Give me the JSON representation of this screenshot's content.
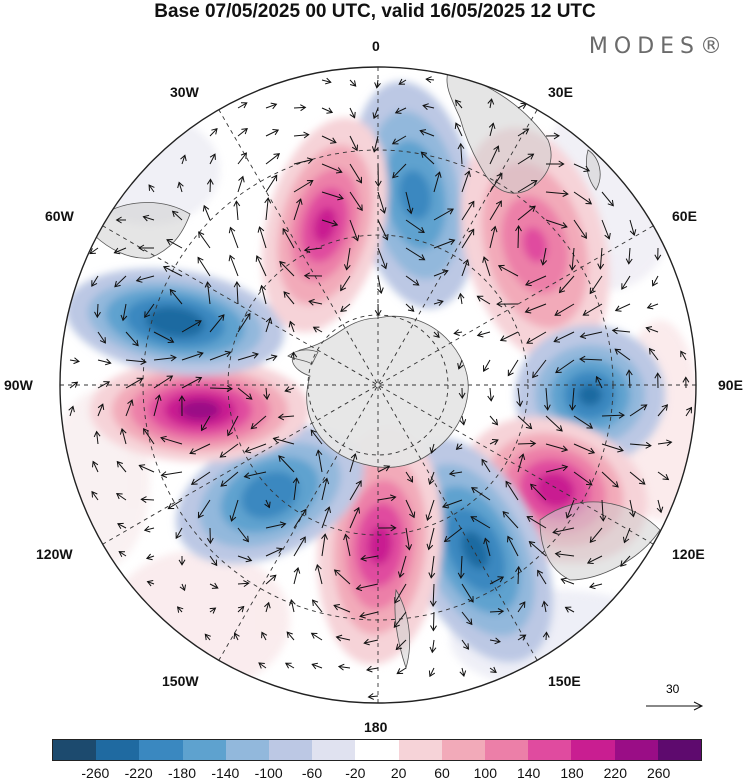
{
  "title": "Base 07/05/2025 00 UTC, valid 16/05/2025 12 UTC",
  "brand": "MODES®",
  "longitude_labels": {
    "l0": "0",
    "l30e": "30E",
    "l60e": "60E",
    "l90e": "90E",
    "l120e": "120E",
    "l150e": "150E",
    "l180": "180",
    "l150w": "150W",
    "l120w": "120W",
    "l90w": "90W",
    "l60w": "60W",
    "l30w": "30W"
  },
  "reference_vector": {
    "label": "30"
  },
  "colorbar": {
    "colors": [
      "#1c4a6e",
      "#1f6aa1",
      "#3a88c0",
      "#5ea2cf",
      "#92b8dc",
      "#bcc8e4",
      "#e0e2f0",
      "#ffffff",
      "#f6d3d8",
      "#f2aab9",
      "#ec7fa8",
      "#e04b9f",
      "#c91e91",
      "#9a0d86",
      "#5e0a6e"
    ],
    "ticks": [
      "-260",
      "-220",
      "-180",
      "-140",
      "-100",
      "-60",
      "-20",
      "20",
      "60",
      "100",
      "140",
      "180",
      "220",
      "260"
    ]
  },
  "map": {
    "projection": "south polar stereographic",
    "field": "anomaly",
    "cells": [
      {
        "name": "neg-south-atlantic",
        "value": -150
      },
      {
        "name": "pos-se-atlantic",
        "value": 130
      },
      {
        "name": "neg-indian",
        "value": -190
      },
      {
        "name": "pos-se-australia",
        "value": 220
      },
      {
        "name": "neg-tasman",
        "value": -200
      },
      {
        "name": "pos-ross",
        "value": 200
      },
      {
        "name": "neg-south-pacific",
        "value": -170
      },
      {
        "name": "pos-bellingshausen",
        "value": 250
      },
      {
        "name": "neg-amundsen",
        "value": -220
      },
      {
        "name": "pos-weddell",
        "value": 230
      }
    ]
  }
}
